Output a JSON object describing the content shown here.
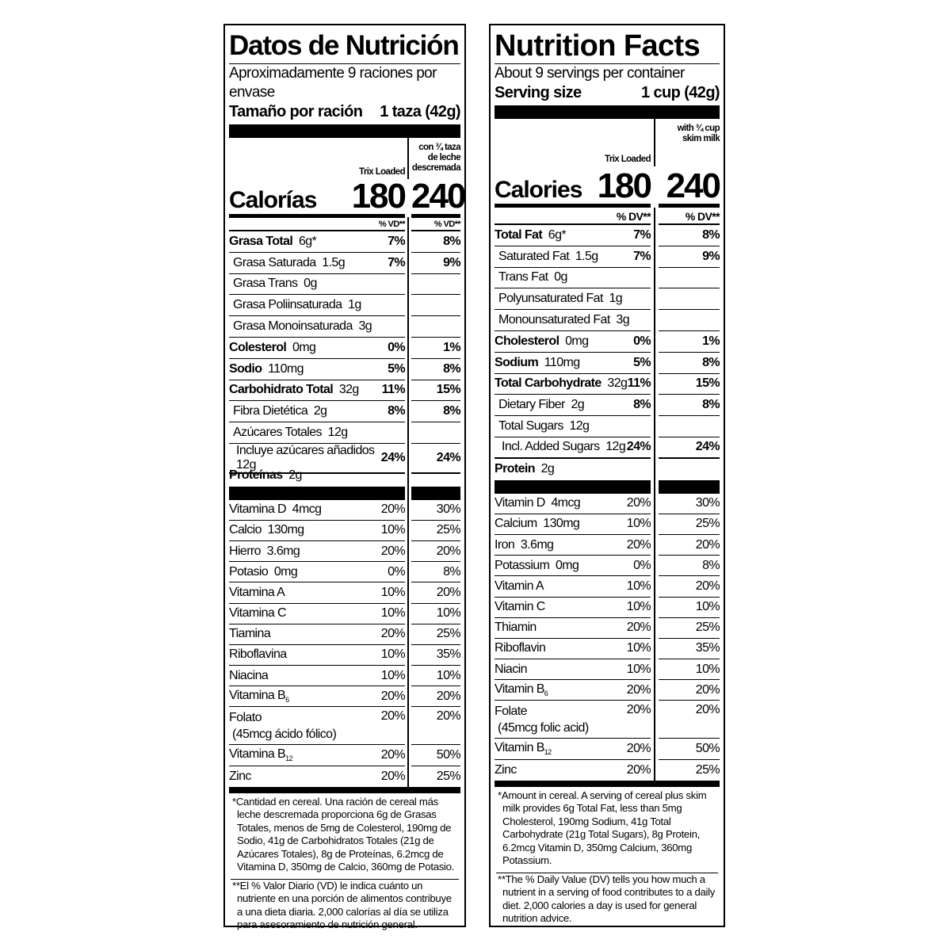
{
  "panels": [
    {
      "id": "es",
      "title": "Datos de Nutrición",
      "servings": "Aproximadamente 9 raciones por envase",
      "serving_size_label": "Tamaño por ración",
      "serving_size_value": "1 taza (42g)",
      "col1_header": "Trix Loaded",
      "col2_header": "con ¾ taza de leche descremada",
      "calories_label": "Calorías",
      "calories_1": "180",
      "calories_2": "240",
      "dv_header": "% VD**",
      "nutrients": [
        {
          "name": "Grasa Total",
          "amount": "6g*",
          "dv1": "7%",
          "dv2": "8%",
          "bold": true,
          "indent": 0
        },
        {
          "name": "Grasa Saturada",
          "amount": "1.5g",
          "dv1": "7%",
          "dv2": "9%",
          "indent": 1
        },
        {
          "name": "Grasa Trans",
          "amount": "0g",
          "dv1": "",
          "dv2": "",
          "indent": 1
        },
        {
          "name": "Grasa Poliinsaturada",
          "amount": "1g",
          "dv1": "",
          "dv2": "",
          "indent": 1
        },
        {
          "name": "Grasa Monoinsaturada",
          "amount": "3g",
          "dv1": "",
          "dv2": "",
          "indent": 1
        },
        {
          "name": "Colesterol",
          "amount": "0mg",
          "dv1": "0%",
          "dv2": "1%",
          "bold": true,
          "indent": 0
        },
        {
          "name": "Sodio",
          "amount": "110mg",
          "dv1": "5%",
          "dv2": "8%",
          "bold": true,
          "indent": 0
        },
        {
          "name": "Carbohidrato Total",
          "amount": "32g",
          "dv1": "11%",
          "dv2": "15%",
          "bold": true,
          "indent": 0
        },
        {
          "name": "Fibra Dietética",
          "amount": "2g",
          "dv1": "8%",
          "dv2": "8%",
          "indent": 1
        },
        {
          "name": "Azúcares Totales",
          "amount": "12g",
          "dv1": "",
          "dv2": "",
          "indent": 1
        },
        {
          "name": "Incluye azúcares añadidos",
          "amount": "12g",
          "dv1": "24%",
          "dv2": "24%",
          "indent": 2
        },
        {
          "name": "Proteínas",
          "amount": "2g",
          "dv1": "",
          "dv2": "",
          "bold": true,
          "indent": 0
        }
      ],
      "vitamins": [
        {
          "name": "Vitamina D",
          "amount": "4mcg",
          "dv1": "20%",
          "dv2": "30%"
        },
        {
          "name": "Calcio",
          "amount": "130mg",
          "dv1": "10%",
          "dv2": "25%"
        },
        {
          "name": "Hierro",
          "amount": "3.6mg",
          "dv1": "20%",
          "dv2": "20%"
        },
        {
          "name": "Potasio",
          "amount": "0mg",
          "dv1": "0%",
          "dv2": "8%"
        },
        {
          "name": "Vitamina A",
          "amount": "",
          "dv1": "10%",
          "dv2": "20%"
        },
        {
          "name": "Vitamina C",
          "amount": "",
          "dv1": "10%",
          "dv2": "10%"
        },
        {
          "name": "Tiamina",
          "amount": "",
          "dv1": "20%",
          "dv2": "25%"
        },
        {
          "name": "Riboflavina",
          "amount": "",
          "dv1": "10%",
          "dv2": "35%"
        },
        {
          "name": "Niacina",
          "amount": "",
          "dv1": "10%",
          "dv2": "10%"
        },
        {
          "name": "Vitamina B",
          "sub": "6",
          "amount": "",
          "dv1": "20%",
          "dv2": "20%"
        },
        {
          "name": "Folato",
          "line2": "(45mcg ácido fólico)",
          "amount": "",
          "dv1": "20%",
          "dv2": "20%"
        },
        {
          "name": "Vitamina B",
          "sub": "12",
          "amount": "",
          "dv1": "20%",
          "dv2": "50%"
        },
        {
          "name": "Zinc",
          "amount": "",
          "dv1": "20%",
          "dv2": "25%"
        }
      ],
      "footnote_1": "*Cantidad en cereal. Una ración de cereal más leche descremada proporciona 6g de Grasas Totales, menos de 5mg de Colesterol, 190mg de Sodio, 41g de Carbohidratos Totales (21g de Azúcares Totales), 8g de Proteínas, 6.2mcg de Vitamina D, 350mg de Calcio, 360mg de Potasio.",
      "footnote_2": "**El % Valor Diario (VD) le indica cuánto un nutriente en una porción de alimentos contribuye a una dieta diaria. 2,000 calorías al día se utiliza para asesoramiento de nutrición general."
    },
    {
      "id": "en",
      "title": "Nutrition Facts",
      "servings": "About 9 servings per container",
      "serving_size_label": "Serving size",
      "serving_size_value": "1 cup (42g)",
      "col1_header": "Trix Loaded",
      "col2_header": "with ¾ cup skim milk",
      "calories_label": "Calories",
      "calories_1": "180",
      "calories_2": "240",
      "dv_header": "% DV**",
      "nutrients": [
        {
          "name": "Total Fat",
          "amount": "6g*",
          "dv1": "7%",
          "dv2": "8%",
          "bold": true,
          "indent": 0
        },
        {
          "name": "Saturated Fat",
          "amount": "1.5g",
          "dv1": "7%",
          "dv2": "9%",
          "indent": 1
        },
        {
          "name": "Trans Fat",
          "amount": "0g",
          "dv1": "",
          "dv2": "",
          "indent": 1
        },
        {
          "name": "Polyunsaturated Fat",
          "amount": "1g",
          "dv1": "",
          "dv2": "",
          "indent": 1
        },
        {
          "name": "Monounsaturated Fat",
          "amount": "3g",
          "dv1": "",
          "dv2": "",
          "indent": 1
        },
        {
          "name": "Cholesterol",
          "amount": "0mg",
          "dv1": "0%",
          "dv2": "1%",
          "bold": true,
          "indent": 0
        },
        {
          "name": "Sodium",
          "amount": "110mg",
          "dv1": "5%",
          "dv2": "8%",
          "bold": true,
          "indent": 0
        },
        {
          "name": "Total Carbohydrate",
          "amount": "32g",
          "dv1": "11%",
          "dv2": "15%",
          "bold": true,
          "indent": 0
        },
        {
          "name": "Dietary Fiber",
          "amount": "2g",
          "dv1": "8%",
          "dv2": "8%",
          "indent": 1
        },
        {
          "name": "Total Sugars",
          "amount": "12g",
          "dv1": "",
          "dv2": "",
          "indent": 1
        },
        {
          "name": "Incl. Added Sugars",
          "amount": "12g",
          "dv1": "24%",
          "dv2": "24%",
          "indent": 2
        },
        {
          "name": "Protein",
          "amount": "2g",
          "dv1": "",
          "dv2": "",
          "bold": true,
          "indent": 0
        }
      ],
      "vitamins": [
        {
          "name": "Vitamin D",
          "amount": "4mcg",
          "dv1": "20%",
          "dv2": "30%"
        },
        {
          "name": "Calcium",
          "amount": "130mg",
          "dv1": "10%",
          "dv2": "25%"
        },
        {
          "name": "Iron",
          "amount": "3.6mg",
          "dv1": "20%",
          "dv2": "20%"
        },
        {
          "name": "Potassium",
          "amount": "0mg",
          "dv1": "0%",
          "dv2": "8%"
        },
        {
          "name": "Vitamin A",
          "amount": "",
          "dv1": "10%",
          "dv2": "20%"
        },
        {
          "name": "Vitamin C",
          "amount": "",
          "dv1": "10%",
          "dv2": "10%"
        },
        {
          "name": "Thiamin",
          "amount": "",
          "dv1": "20%",
          "dv2": "25%"
        },
        {
          "name": "Riboflavin",
          "amount": "",
          "dv1": "10%",
          "dv2": "35%"
        },
        {
          "name": "Niacin",
          "amount": "",
          "dv1": "10%",
          "dv2": "10%"
        },
        {
          "name": "Vitamin B",
          "sub": "6",
          "amount": "",
          "dv1": "20%",
          "dv2": "20%"
        },
        {
          "name": "Folate",
          "line2": "(45mcg folic acid)",
          "amount": "",
          "dv1": "20%",
          "dv2": "20%"
        },
        {
          "name": "Vitamin B",
          "sub": "12",
          "amount": "",
          "dv1": "20%",
          "dv2": "50%"
        },
        {
          "name": "Zinc",
          "amount": "",
          "dv1": "20%",
          "dv2": "25%"
        }
      ],
      "footnote_1": "*Amount in cereal. A serving of cereal plus skim milk provides 6g Total Fat, less than 5mg Cholesterol, 190mg Sodium, 41g Total Carbohydrate (21g Total Sugars), 8g Protein, 6.2mcg Vitamin D, 350mg Calcium, 360mg Potassium.",
      "footnote_2": "**The % Daily Value (DV) tells you how much a nutrient in a serving of food contributes to a daily diet. 2,000 calories a day is used for general nutrition advice."
    }
  ]
}
